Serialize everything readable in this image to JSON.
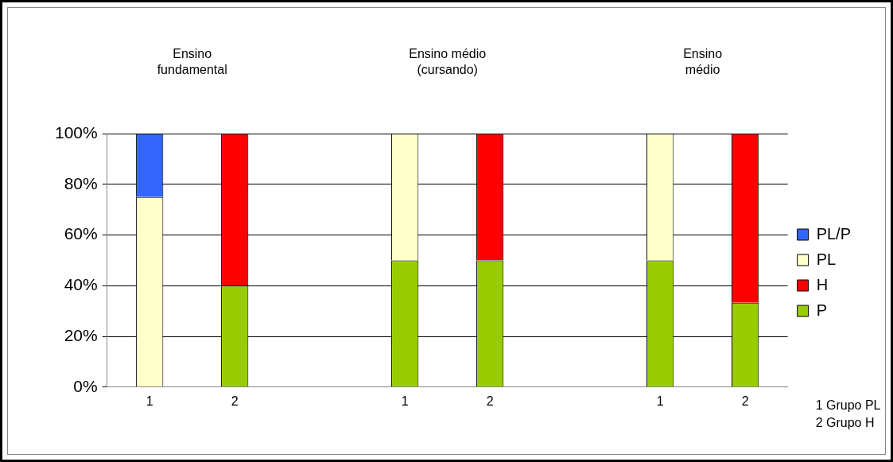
{
  "chart_data": {
    "type": "bar",
    "stacked": true,
    "categories": [
      "1",
      "2",
      null,
      "1",
      "2",
      null,
      "1",
      "2"
    ],
    "series": [
      {
        "name": "P",
        "color": "#99cc00",
        "values": [
          0,
          40,
          null,
          50,
          50,
          null,
          50,
          33.3
        ]
      },
      {
        "name": "H",
        "color": "#ff0000",
        "values": [
          0,
          60,
          null,
          0,
          50,
          null,
          0,
          66.7
        ]
      },
      {
        "name": "PL",
        "color": "#ffffcc",
        "values": [
          75,
          0,
          null,
          50,
          0,
          null,
          50,
          0
        ]
      },
      {
        "name": "PL/P",
        "color": "#3366ff",
        "values": [
          25,
          0,
          null,
          0,
          0,
          null,
          0,
          0
        ]
      }
    ],
    "ylim": [
      0,
      100
    ],
    "yticks": [
      {
        "value": 0,
        "label": "0%"
      },
      {
        "value": 20,
        "label": "20%"
      },
      {
        "value": 40,
        "label": "40%"
      },
      {
        "value": 60,
        "label": "60%"
      },
      {
        "value": 80,
        "label": "80%"
      },
      {
        "value": 100,
        "label": "100%"
      }
    ],
    "grid": "y",
    "legend": "right",
    "annotations": [
      "Ensino\nfundamental",
      "Ensino médio\n(cursando)",
      "Ensino\nmédio",
      "1 Grupo PL",
      "2 Grupo H"
    ]
  }
}
